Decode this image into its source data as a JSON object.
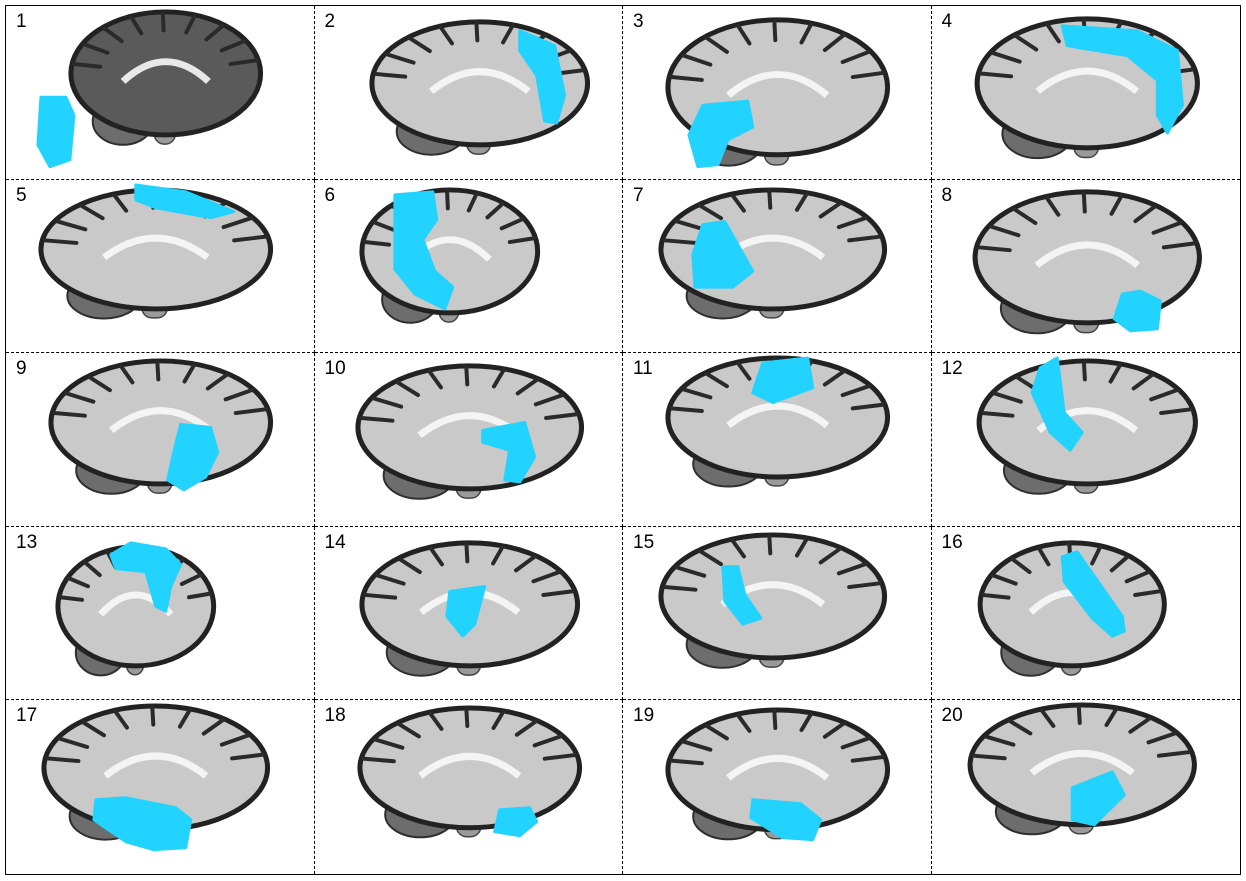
{
  "highlight_color": "#22d3ff",
  "panels": [
    {
      "label": "1",
      "view": "sagittal-medial"
    },
    {
      "label": "2",
      "view": "sagittal-medial"
    },
    {
      "label": "3",
      "view": "sagittal-medial"
    },
    {
      "label": "4",
      "view": "sagittal-medial"
    },
    {
      "label": "5",
      "view": "sagittal-medial"
    },
    {
      "label": "6",
      "view": "sagittal-lateral"
    },
    {
      "label": "7",
      "view": "sagittal-medial"
    },
    {
      "label": "8",
      "view": "sagittal-medial"
    },
    {
      "label": "9",
      "view": "sagittal-medial"
    },
    {
      "label": "10",
      "view": "sagittal-medial"
    },
    {
      "label": "11",
      "view": "sagittal-medial"
    },
    {
      "label": "12",
      "view": "sagittal-medial"
    },
    {
      "label": "13",
      "view": "sagittal-lateral"
    },
    {
      "label": "14",
      "view": "sagittal-medial"
    },
    {
      "label": "15",
      "view": "sagittal-medial"
    },
    {
      "label": "16",
      "view": "sagittal-lateral"
    },
    {
      "label": "17",
      "view": "sagittal-medial"
    },
    {
      "label": "18",
      "view": "sagittal-medial"
    },
    {
      "label": "19",
      "view": "sagittal-medial"
    },
    {
      "label": "20",
      "view": "sagittal-medial"
    }
  ]
}
